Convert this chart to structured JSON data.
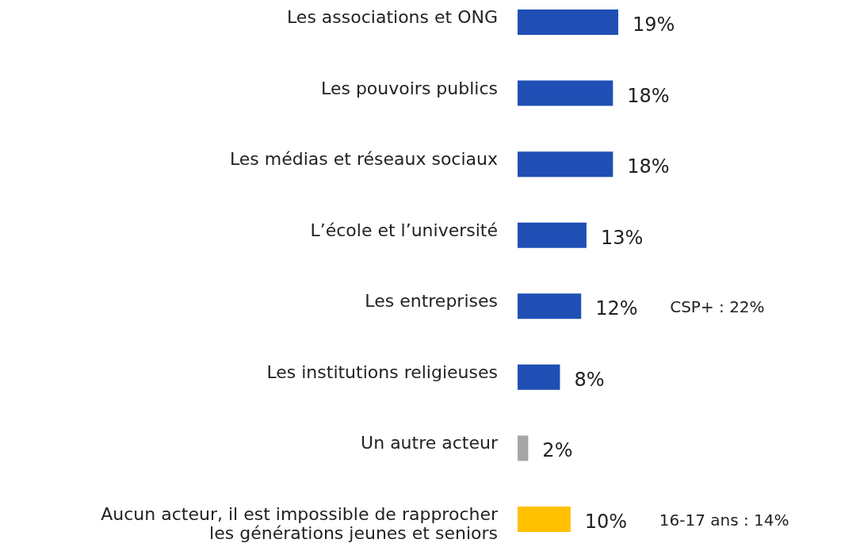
{
  "chart_data": {
    "type": "bar",
    "orientation": "horizontal",
    "value_labels": [
      "19%",
      "18%",
      "18%",
      "13%",
      "12%",
      "8%",
      "2%",
      "10%"
    ],
    "categories": [
      "Les associations et ONG",
      "Les pouvoirs publics",
      "Les médias et réseaux sociaux",
      "L’école et l’université",
      "Les entreprises",
      "Les institutions religieuses",
      "Un autre acteur",
      "Aucun acteur, il est impossible de rapprocher les générations jeunes et seniors"
    ],
    "values": [
      19,
      18,
      18,
      13,
      12,
      8,
      2,
      10
    ],
    "colors": [
      "#1f4fb5",
      "#1f4fb5",
      "#1f4fb5",
      "#1f4fb5",
      "#1f4fb5",
      "#1f4fb5",
      "#a6a6a6",
      "#ffc000"
    ],
    "annotations": [
      "CSP+ : 22%",
      "16-17 ans : 14%"
    ]
  }
}
